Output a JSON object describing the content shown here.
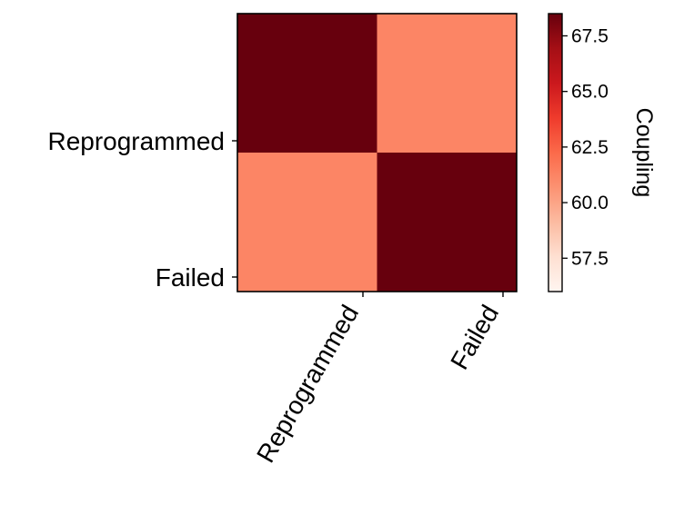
{
  "chart_data": {
    "type": "heatmap",
    "title": "",
    "xlabel": "",
    "ylabel": "",
    "x_categories": [
      "Reprogrammed",
      "Failed"
    ],
    "y_categories": [
      "Reprogrammed",
      "Failed"
    ],
    "values": [
      [
        68.5,
        61.2
      ],
      [
        61.2,
        68.5
      ]
    ],
    "colormap": "Reds",
    "colorbar": {
      "label": "Coupling",
      "range": [
        56.0,
        68.5
      ],
      "ticks": [
        "57.5",
        "60.0",
        "62.5",
        "65.0",
        "67.5"
      ],
      "tick_values": [
        57.5,
        60.0,
        62.5,
        65.0,
        67.5
      ]
    },
    "grid": false
  }
}
